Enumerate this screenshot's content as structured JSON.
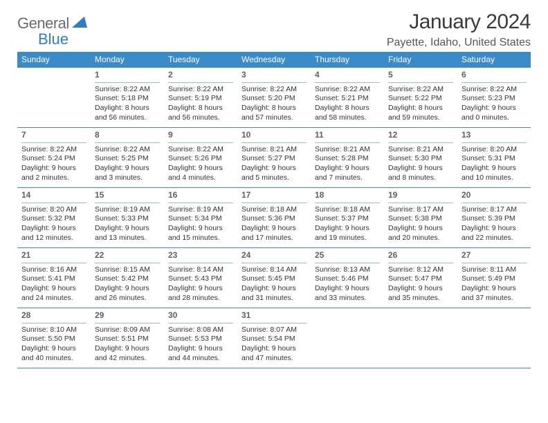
{
  "logo": {
    "text1": "General",
    "text2": "Blue"
  },
  "title": "January 2024",
  "location": "Payette, Idaho, United States",
  "colors": {
    "header_bg": "#3b8bc9",
    "header_fg": "#ffffff",
    "rule": "#3b8bc9",
    "daynum": "#5f5f5f",
    "text": "#333333",
    "logo_gray": "#6b6b6b",
    "logo_blue": "#2f7ec1"
  },
  "day_labels": [
    "Sunday",
    "Monday",
    "Tuesday",
    "Wednesday",
    "Thursday",
    "Friday",
    "Saturday"
  ],
  "weeks": [
    [
      null,
      {
        "n": "1",
        "sunrise": "8:22 AM",
        "sunset": "5:18 PM",
        "daylight": "8 hours and 56 minutes."
      },
      {
        "n": "2",
        "sunrise": "8:22 AM",
        "sunset": "5:19 PM",
        "daylight": "8 hours and 56 minutes."
      },
      {
        "n": "3",
        "sunrise": "8:22 AM",
        "sunset": "5:20 PM",
        "daylight": "8 hours and 57 minutes."
      },
      {
        "n": "4",
        "sunrise": "8:22 AM",
        "sunset": "5:21 PM",
        "daylight": "8 hours and 58 minutes."
      },
      {
        "n": "5",
        "sunrise": "8:22 AM",
        "sunset": "5:22 PM",
        "daylight": "8 hours and 59 minutes."
      },
      {
        "n": "6",
        "sunrise": "8:22 AM",
        "sunset": "5:23 PM",
        "daylight": "9 hours and 0 minutes."
      }
    ],
    [
      {
        "n": "7",
        "sunrise": "8:22 AM",
        "sunset": "5:24 PM",
        "daylight": "9 hours and 2 minutes."
      },
      {
        "n": "8",
        "sunrise": "8:22 AM",
        "sunset": "5:25 PM",
        "daylight": "9 hours and 3 minutes."
      },
      {
        "n": "9",
        "sunrise": "8:22 AM",
        "sunset": "5:26 PM",
        "daylight": "9 hours and 4 minutes."
      },
      {
        "n": "10",
        "sunrise": "8:21 AM",
        "sunset": "5:27 PM",
        "daylight": "9 hours and 5 minutes."
      },
      {
        "n": "11",
        "sunrise": "8:21 AM",
        "sunset": "5:28 PM",
        "daylight": "9 hours and 7 minutes."
      },
      {
        "n": "12",
        "sunrise": "8:21 AM",
        "sunset": "5:30 PM",
        "daylight": "9 hours and 8 minutes."
      },
      {
        "n": "13",
        "sunrise": "8:20 AM",
        "sunset": "5:31 PM",
        "daylight": "9 hours and 10 minutes."
      }
    ],
    [
      {
        "n": "14",
        "sunrise": "8:20 AM",
        "sunset": "5:32 PM",
        "daylight": "9 hours and 12 minutes."
      },
      {
        "n": "15",
        "sunrise": "8:19 AM",
        "sunset": "5:33 PM",
        "daylight": "9 hours and 13 minutes."
      },
      {
        "n": "16",
        "sunrise": "8:19 AM",
        "sunset": "5:34 PM",
        "daylight": "9 hours and 15 minutes."
      },
      {
        "n": "17",
        "sunrise": "8:18 AM",
        "sunset": "5:36 PM",
        "daylight": "9 hours and 17 minutes."
      },
      {
        "n": "18",
        "sunrise": "8:18 AM",
        "sunset": "5:37 PM",
        "daylight": "9 hours and 19 minutes."
      },
      {
        "n": "19",
        "sunrise": "8:17 AM",
        "sunset": "5:38 PM",
        "daylight": "9 hours and 20 minutes."
      },
      {
        "n": "20",
        "sunrise": "8:17 AM",
        "sunset": "5:39 PM",
        "daylight": "9 hours and 22 minutes."
      }
    ],
    [
      {
        "n": "21",
        "sunrise": "8:16 AM",
        "sunset": "5:41 PM",
        "daylight": "9 hours and 24 minutes."
      },
      {
        "n": "22",
        "sunrise": "8:15 AM",
        "sunset": "5:42 PM",
        "daylight": "9 hours and 26 minutes."
      },
      {
        "n": "23",
        "sunrise": "8:14 AM",
        "sunset": "5:43 PM",
        "daylight": "9 hours and 28 minutes."
      },
      {
        "n": "24",
        "sunrise": "8:14 AM",
        "sunset": "5:45 PM",
        "daylight": "9 hours and 31 minutes."
      },
      {
        "n": "25",
        "sunrise": "8:13 AM",
        "sunset": "5:46 PM",
        "daylight": "9 hours and 33 minutes."
      },
      {
        "n": "26",
        "sunrise": "8:12 AM",
        "sunset": "5:47 PM",
        "daylight": "9 hours and 35 minutes."
      },
      {
        "n": "27",
        "sunrise": "8:11 AM",
        "sunset": "5:49 PM",
        "daylight": "9 hours and 37 minutes."
      }
    ],
    [
      {
        "n": "28",
        "sunrise": "8:10 AM",
        "sunset": "5:50 PM",
        "daylight": "9 hours and 40 minutes."
      },
      {
        "n": "29",
        "sunrise": "8:09 AM",
        "sunset": "5:51 PM",
        "daylight": "9 hours and 42 minutes."
      },
      {
        "n": "30",
        "sunrise": "8:08 AM",
        "sunset": "5:53 PM",
        "daylight": "9 hours and 44 minutes."
      },
      {
        "n": "31",
        "sunrise": "8:07 AM",
        "sunset": "5:54 PM",
        "daylight": "9 hours and 47 minutes."
      },
      null,
      null,
      null
    ]
  ],
  "labels": {
    "sunrise": "Sunrise:",
    "sunset": "Sunset:",
    "daylight": "Daylight:"
  }
}
